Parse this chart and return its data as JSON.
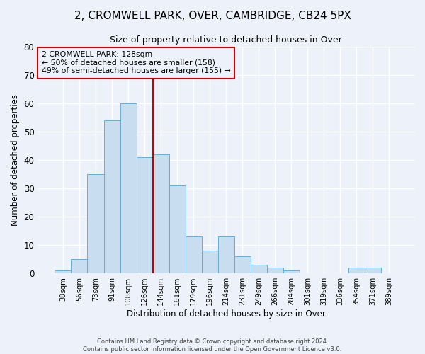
{
  "title": "2, CROMWELL PARK, OVER, CAMBRIDGE, CB24 5PX",
  "subtitle": "Size of property relative to detached houses in Over",
  "xlabel": "Distribution of detached houses by size in Over",
  "ylabel": "Number of detached properties",
  "bin_labels": [
    "38sqm",
    "56sqm",
    "73sqm",
    "91sqm",
    "108sqm",
    "126sqm",
    "144sqm",
    "161sqm",
    "179sqm",
    "196sqm",
    "214sqm",
    "231sqm",
    "249sqm",
    "266sqm",
    "284sqm",
    "301sqm",
    "319sqm",
    "336sqm",
    "354sqm",
    "371sqm",
    "389sqm"
  ],
  "bar_values": [
    1,
    5,
    35,
    54,
    60,
    41,
    42,
    31,
    13,
    8,
    13,
    6,
    3,
    2,
    1,
    0,
    0,
    0,
    2,
    2,
    0
  ],
  "bar_color": "#c8ddf0",
  "bar_edge_color": "#6aadd5",
  "ylim": [
    0,
    80
  ],
  "yticks": [
    0,
    10,
    20,
    30,
    40,
    50,
    60,
    70,
    80
  ],
  "vline_index": 5,
  "vline_color": "#cc0000",
  "annotation_title": "2 CROMWELL PARK: 128sqm",
  "annotation_line1": "← 50% of detached houses are smaller (158)",
  "annotation_line2": "49% of semi-detached houses are larger (155) →",
  "annotation_box_color": "#cc0000",
  "footer_line1": "Contains HM Land Registry data © Crown copyright and database right 2024.",
  "footer_line2": "Contains public sector information licensed under the Open Government Licence v3.0.",
  "background_color": "#edf2fa",
  "grid_color": "#ffffff"
}
